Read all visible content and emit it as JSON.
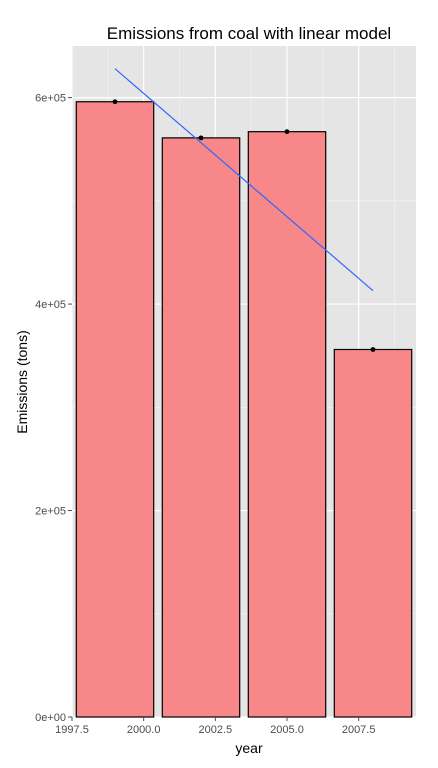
{
  "chart_data": {
    "type": "bar",
    "title": "Emissions from coal with linear model",
    "xlabel": "year",
    "ylabel": "Emissions (tons)",
    "x": [
      1999,
      2002,
      2005,
      2008
    ],
    "values": [
      596000,
      561000,
      567000,
      356000
    ],
    "xlim": [
      1997.5,
      2009.5
    ],
    "ylim": [
      0,
      650000
    ],
    "xticks": [
      1997.5,
      2000.0,
      2002.5,
      2005.0,
      2007.5
    ],
    "xtick_labels": [
      "1997.5",
      "2000.0",
      "2002.5",
      "2005.0",
      "2007.5"
    ],
    "yticks": [
      0,
      200000,
      400000,
      600000
    ],
    "ytick_labels": [
      "0e+00",
      "2e+05",
      "4e+05",
      "6e+05"
    ],
    "bar_width": 2.7,
    "bar_color": "#f8878a",
    "bar_outline": "#000000",
    "point_color": "#000000",
    "fit_line": {
      "x": [
        1999,
        2008
      ],
      "y": [
        628000,
        413000
      ],
      "color": "#3366ff"
    },
    "panel_background": "#e5e5e5",
    "grid": true,
    "grid_color": "#ffffff",
    "legend": "none"
  }
}
